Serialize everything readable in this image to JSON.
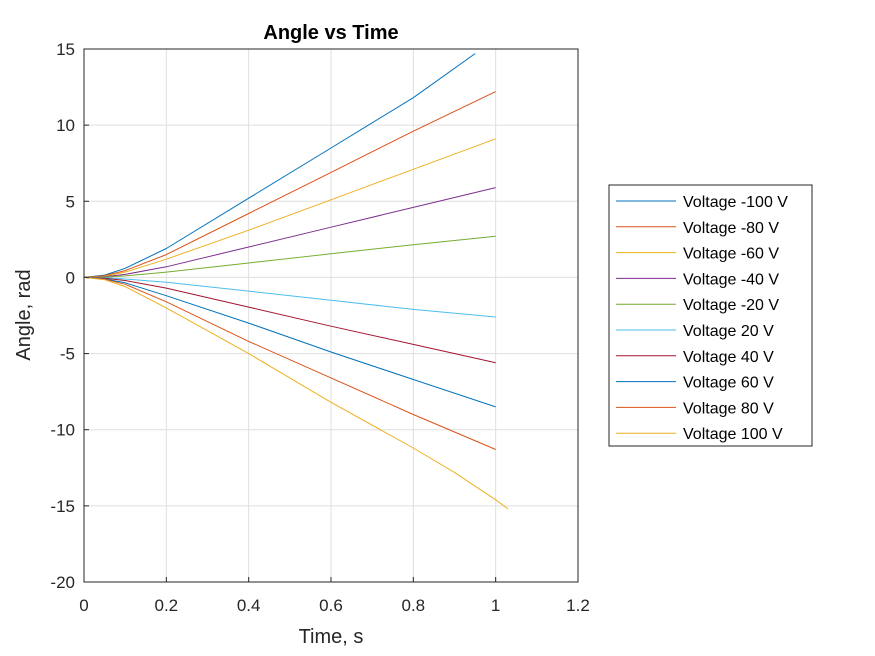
{
  "chart_data": {
    "type": "line",
    "title": "Angle vs Time",
    "xlabel": "Time, s",
    "ylabel": "Angle, rad",
    "xlim": [
      0,
      1.2
    ],
    "ylim": [
      -20,
      15
    ],
    "xticks": [
      "0",
      "0.2",
      "0.4",
      "0.6",
      "0.8",
      "1",
      "1.2"
    ],
    "yticks": [
      "15",
      "10",
      "5",
      "0",
      "-5",
      "-10",
      "-15",
      "-20"
    ],
    "grid": true,
    "legend_position": "right",
    "series": [
      {
        "name": "Voltage -100 V",
        "color": "#0072BD",
        "x": [
          0,
          0.05,
          0.1,
          0.2,
          0.4,
          0.6,
          0.8,
          0.95
        ],
        "y": [
          0,
          0.15,
          0.6,
          1.9,
          5.2,
          8.5,
          11.8,
          14.7
        ]
      },
      {
        "name": "Voltage -80 V",
        "color": "#D95319",
        "x": [
          0,
          0.05,
          0.1,
          0.2,
          0.4,
          0.6,
          0.8,
          1.0
        ],
        "y": [
          0,
          0.12,
          0.45,
          1.5,
          4.2,
          6.9,
          9.6,
          12.2
        ]
      },
      {
        "name": "Voltage -60 V",
        "color": "#EDB120",
        "x": [
          0,
          0.05,
          0.1,
          0.2,
          0.4,
          0.6,
          0.8,
          1.0
        ],
        "y": [
          0,
          0.08,
          0.35,
          1.2,
          3.1,
          5.1,
          7.1,
          9.1
        ]
      },
      {
        "name": "Voltage -40 V",
        "color": "#7E2F8E",
        "x": [
          0,
          0.05,
          0.1,
          0.2,
          0.4,
          0.6,
          0.8,
          1.0
        ],
        "y": [
          0,
          0.05,
          0.2,
          0.7,
          2.0,
          3.3,
          4.6,
          5.9
        ]
      },
      {
        "name": "Voltage -20 V",
        "color": "#77AC30",
        "x": [
          0,
          0.05,
          0.1,
          0.2,
          0.4,
          0.6,
          0.8,
          1.0
        ],
        "y": [
          0,
          0.02,
          0.1,
          0.35,
          0.95,
          1.55,
          2.15,
          2.7
        ]
      },
      {
        "name": "Voltage 20 V",
        "color": "#4DBEEE",
        "x": [
          0,
          0.05,
          0.1,
          0.2,
          0.4,
          0.6,
          0.8,
          1.0
        ],
        "y": [
          0,
          -0.02,
          -0.1,
          -0.32,
          -0.9,
          -1.5,
          -2.1,
          -2.6
        ]
      },
      {
        "name": "Voltage 40 V",
        "color": "#A2142F",
        "x": [
          0,
          0.05,
          0.1,
          0.2,
          0.4,
          0.6,
          0.8,
          1.0
        ],
        "y": [
          0,
          -0.05,
          -0.2,
          -0.7,
          -1.95,
          -3.2,
          -4.4,
          -5.6
        ]
      },
      {
        "name": "Voltage 60 V",
        "color": "#0072BD",
        "x": [
          0,
          0.05,
          0.1,
          0.2,
          0.4,
          0.6,
          0.8,
          1.0
        ],
        "y": [
          0,
          -0.1,
          -0.35,
          -1.2,
          -3.0,
          -4.9,
          -6.7,
          -8.5
        ]
      },
      {
        "name": "Voltage 80 V",
        "color": "#D95319",
        "x": [
          0,
          0.05,
          0.1,
          0.2,
          0.4,
          0.6,
          0.8,
          1.0
        ],
        "y": [
          0,
          -0.12,
          -0.45,
          -1.6,
          -4.2,
          -6.6,
          -9.0,
          -11.3
        ]
      },
      {
        "name": "Voltage 100 V",
        "color": "#EDB120",
        "x": [
          0,
          0.05,
          0.1,
          0.2,
          0.4,
          0.6,
          0.8,
          0.9,
          1.0,
          1.03
        ],
        "y": [
          0,
          -0.15,
          -0.6,
          -2.0,
          -5.0,
          -8.2,
          -11.2,
          -12.8,
          -14.6,
          -15.2
        ]
      }
    ]
  }
}
